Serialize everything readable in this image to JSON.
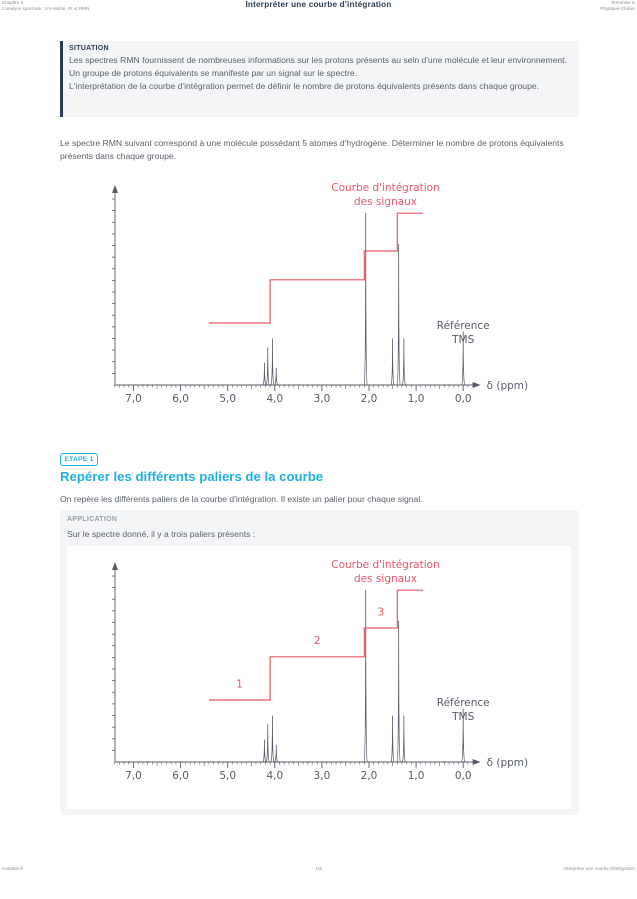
{
  "header": {
    "chapter": "Chapitre 6",
    "chapter_subtitle": "L'analyse spectrale : UV-visible, IR et RMN",
    "title": "Interpréter une courbe d'intégration",
    "level": "Terminale S",
    "subject": "Physique-Chimie"
  },
  "situation": {
    "label": "SITUATION",
    "text_1": "Les spectres RMN fournissent de nombreuses informations sur les protons présents au sein d'une molécule et leur environnement. Un groupe de protons équivalents se manifeste par un signal sur le spectre.",
    "text_2": "L'interprétation de la courbe d'intégration permet de définir le nombre de protons équivalents présents dans chaque groupe."
  },
  "intro": "Le spectre RMN suivant correspond à une molécule possédant 5 atomes d'hydrogène. Déterminer le nombre de protons équivalents présents dans chaque groupe.",
  "etape": {
    "badge": "ETAPE 1",
    "title": "Repérer les différents paliers de la courbe",
    "text": "On repère les différents paliers de la courbe d'intégration. Il existe un palier pour chaque signal."
  },
  "application": {
    "label": "APPLICATION",
    "text": "Sur le spectre donné, il y a trois paliers présents :"
  },
  "footer": {
    "site": "Kartable.fr",
    "page": "1/3",
    "doc": "Interpréter une courbe d'intégration"
  },
  "chart_data": [
    {
      "type": "line",
      "xlabel": "δ (ppm)",
      "x_ticks": [
        "7,0",
        "6,0",
        "5,0",
        "4,0",
        "3,0",
        "2,0",
        "1,0",
        "0,0"
      ],
      "xlim": [
        7.5,
        -0.2
      ],
      "x_reversed": true,
      "y_axis_ticks": 16,
      "peaks": [
        {
          "x": 4.22,
          "h": 0.13
        },
        {
          "x": 4.15,
          "h": 0.22
        },
        {
          "x": 4.05,
          "h": 0.27
        },
        {
          "x": 3.97,
          "h": 0.1
        },
        {
          "x": 2.07,
          "h": 1.0
        },
        {
          "x": 1.5,
          "h": 0.27
        },
        {
          "x": 1.37,
          "h": 0.82
        },
        {
          "x": 1.26,
          "h": 0.27
        },
        {
          "x": 0.0,
          "h": 0.31
        }
      ],
      "integration": {
        "points": [
          [
            5.4,
            0.0
          ],
          [
            4.1,
            0.0
          ],
          [
            4.1,
            0.24
          ],
          [
            2.1,
            0.24
          ],
          [
            2.1,
            0.4
          ],
          [
            1.4,
            0.4
          ],
          [
            1.4,
            0.61
          ],
          [
            0.85,
            0.61
          ]
        ],
        "color": "#e8566a"
      },
      "annotations": {
        "curve_label": [
          "Courbe d'intégration",
          "des signaux"
        ],
        "reference_label": [
          "Référence",
          "TMS"
        ]
      }
    },
    {
      "type": "line",
      "xlabel": "δ (ppm)",
      "x_ticks": [
        "7,0",
        "6,0",
        "5,0",
        "4,0",
        "3,0",
        "2,0",
        "1,0",
        "0,0"
      ],
      "xlim": [
        7.5,
        -0.2
      ],
      "x_reversed": true,
      "y_axis_ticks": 16,
      "peaks": [
        {
          "x": 4.22,
          "h": 0.13
        },
        {
          "x": 4.15,
          "h": 0.22
        },
        {
          "x": 4.05,
          "h": 0.27
        },
        {
          "x": 3.97,
          "h": 0.1
        },
        {
          "x": 2.07,
          "h": 1.0
        },
        {
          "x": 1.5,
          "h": 0.27
        },
        {
          "x": 1.37,
          "h": 0.82
        },
        {
          "x": 1.26,
          "h": 0.27
        },
        {
          "x": 0.0,
          "h": 0.31
        }
      ],
      "integration": {
        "points": [
          [
            5.4,
            0.0
          ],
          [
            4.1,
            0.0
          ],
          [
            4.1,
            0.24
          ],
          [
            2.1,
            0.24
          ],
          [
            2.1,
            0.4
          ],
          [
            1.4,
            0.4
          ],
          [
            1.4,
            0.61
          ],
          [
            0.85,
            0.61
          ]
        ],
        "color": "#e8566a"
      },
      "step_labels": [
        {
          "text": "1",
          "x": 4.75,
          "y": 0.07
        },
        {
          "text": "2",
          "x": 3.1,
          "y": 0.31
        },
        {
          "text": "3",
          "x": 1.75,
          "y": 0.47
        }
      ],
      "annotations": {
        "curve_label": [
          "Courbe d'intégration",
          "des signaux"
        ],
        "reference_label": [
          "Référence",
          "TMS"
        ]
      }
    }
  ]
}
